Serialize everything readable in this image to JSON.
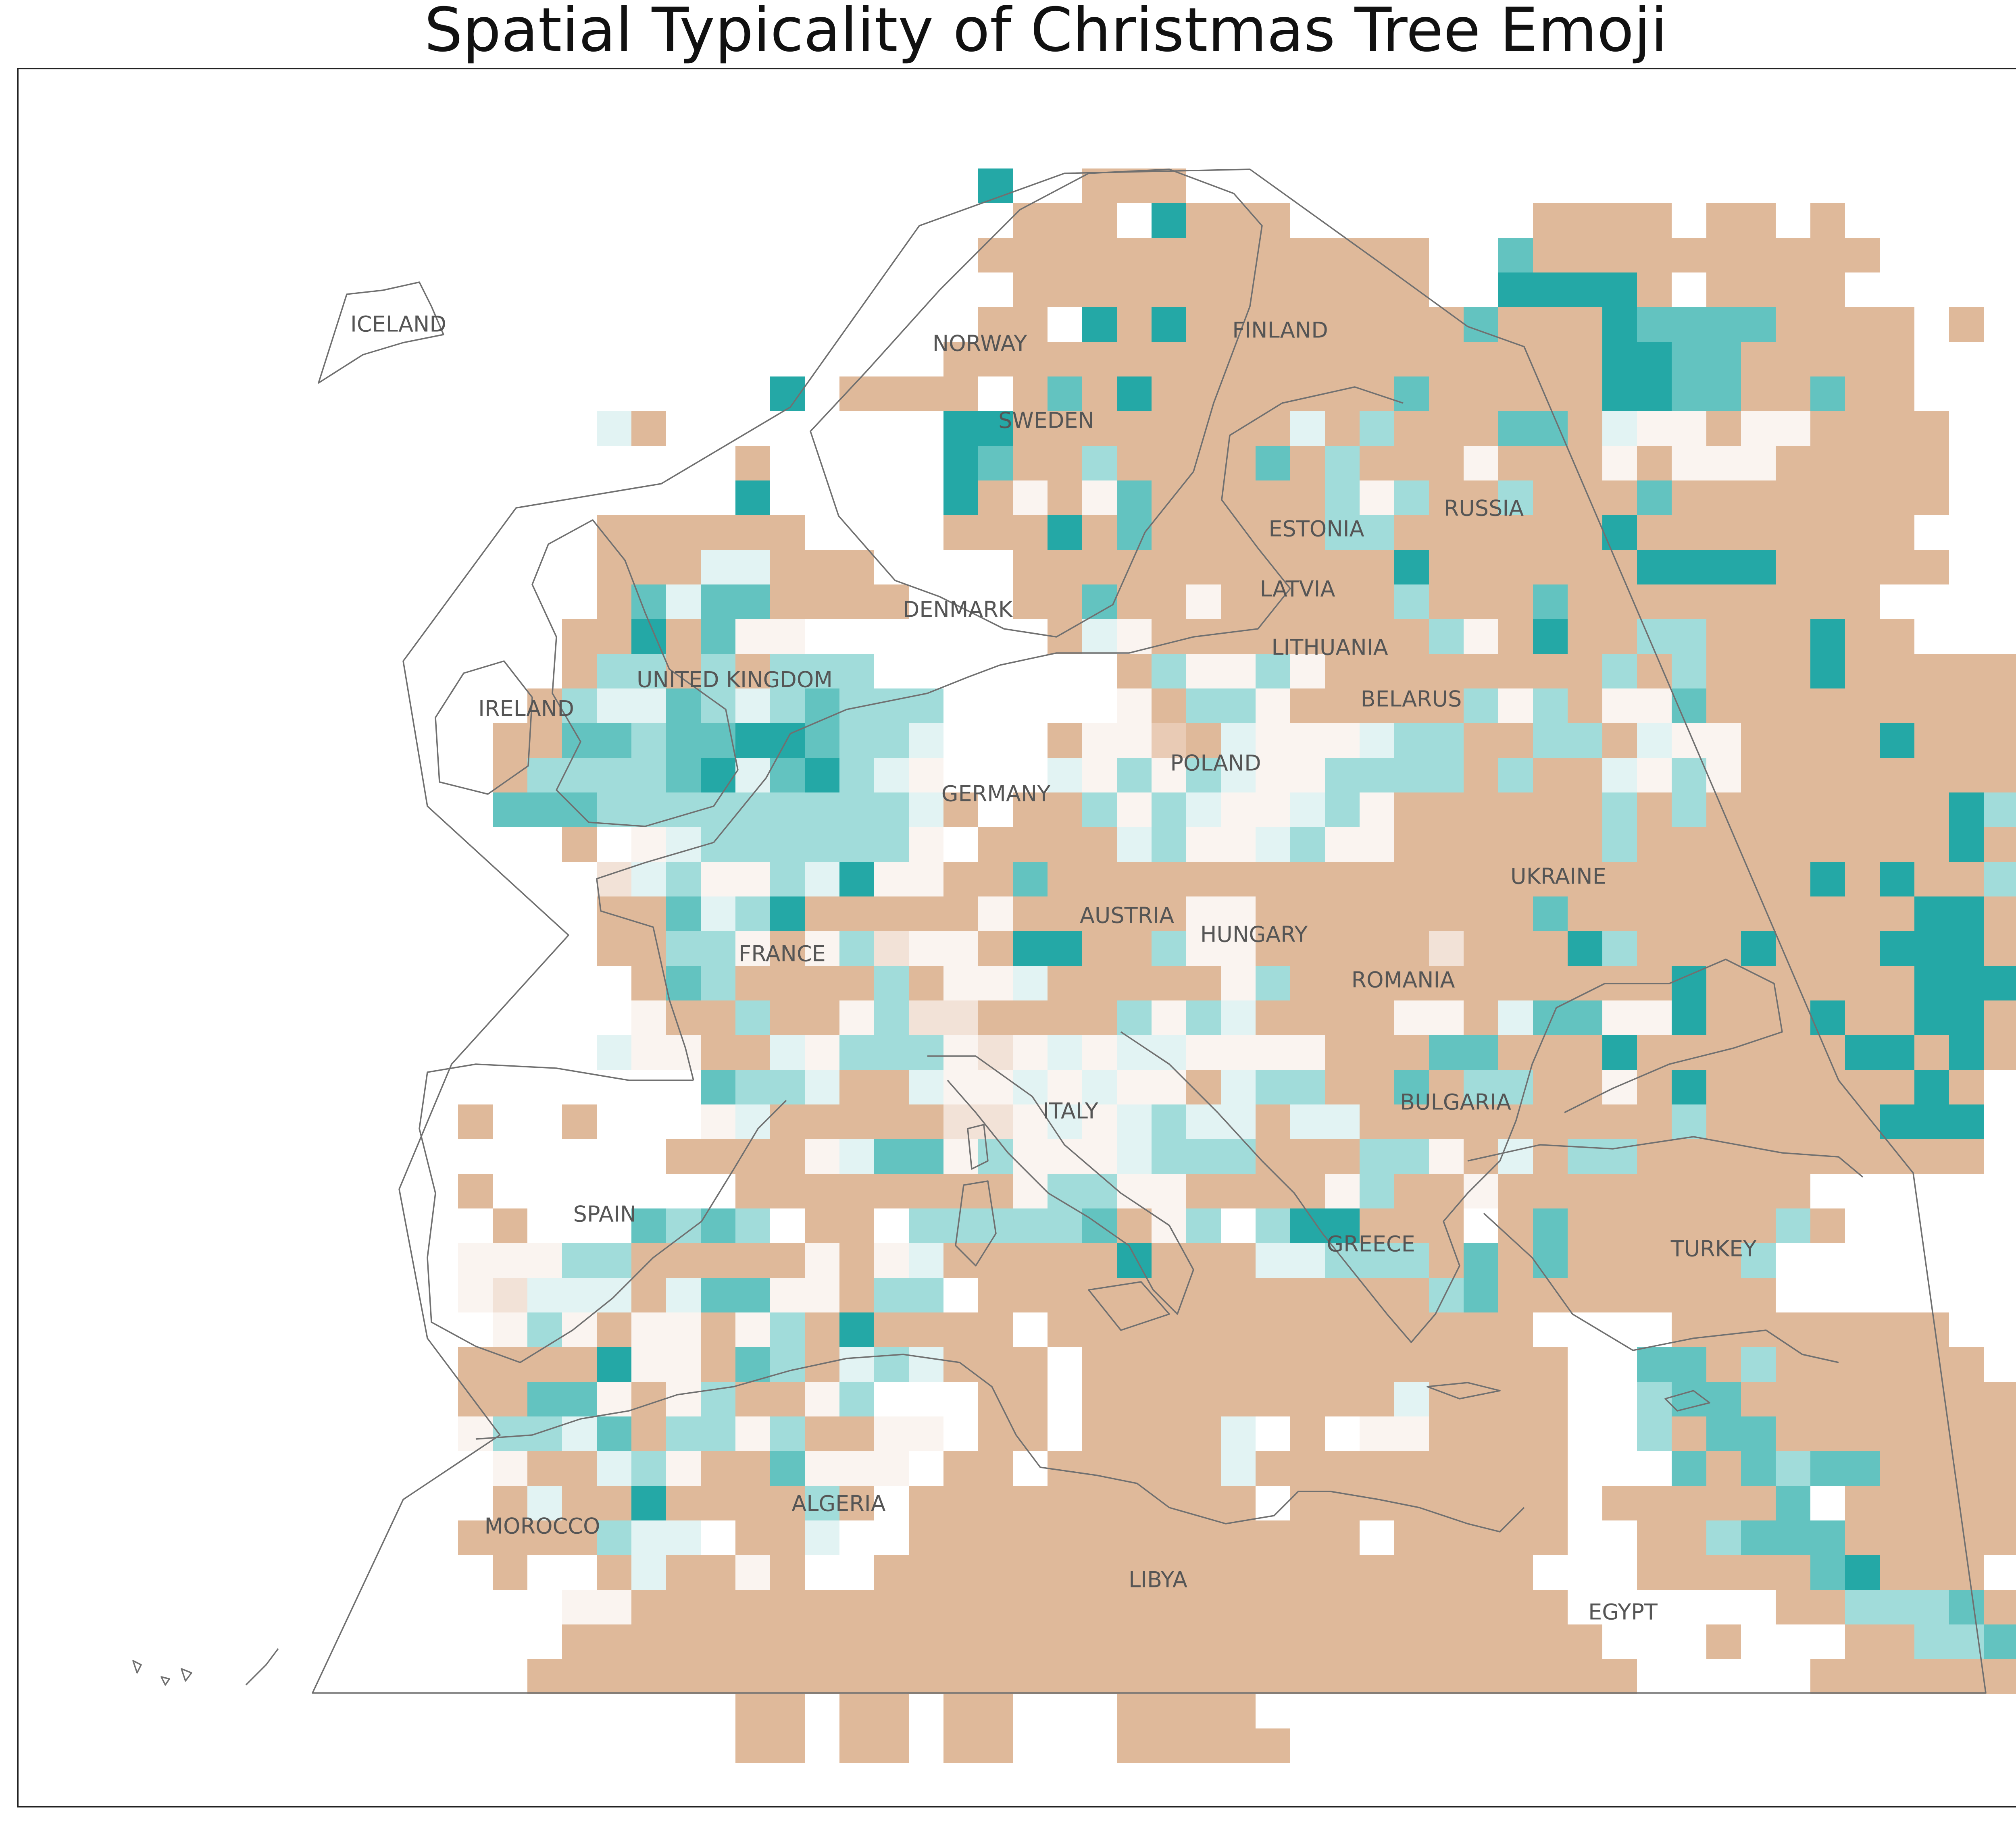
{
  "title": "Spatial Typicality of Christmas Tree Emoji",
  "colors": {
    "background": "#ffffff",
    "frame": "#222222",
    "coastline": "#707070",
    "label": "#555555",
    "scale": [
      "#dfb99a",
      "#e9cbb5",
      "#f2e2d7",
      "#faf4f0",
      "#e2f3f3",
      "#a1dcda",
      "#63c3c0",
      "#24a8a6"
    ]
  },
  "labels": [
    {
      "id": "iceland",
      "text": "ICELAND"
    },
    {
      "id": "norway",
      "text": "NORWAY"
    },
    {
      "id": "finland",
      "text": "FINLAND"
    },
    {
      "id": "sweden",
      "text": "SWEDEN"
    },
    {
      "id": "russia",
      "text": "RUSSIA"
    },
    {
      "id": "estonia",
      "text": "ESTONIA"
    },
    {
      "id": "latvia",
      "text": "LATVIA"
    },
    {
      "id": "denmark",
      "text": "DENMARK"
    },
    {
      "id": "lithuania",
      "text": "LITHUANIA"
    },
    {
      "id": "united-kingdom",
      "text": "UNITED KINGDOM"
    },
    {
      "id": "ireland",
      "text": "IRELAND"
    },
    {
      "id": "belarus",
      "text": "BELARUS"
    },
    {
      "id": "poland",
      "text": "POLAND"
    },
    {
      "id": "germany",
      "text": "GERMANY"
    },
    {
      "id": "ukraine",
      "text": "UKRAINE"
    },
    {
      "id": "austria",
      "text": "AUSTRIA"
    },
    {
      "id": "hungary",
      "text": "HUNGARY"
    },
    {
      "id": "france",
      "text": "FRANCE"
    },
    {
      "id": "romania",
      "text": "ROMANIA"
    },
    {
      "id": "italy",
      "text": "ITALY"
    },
    {
      "id": "bulgaria",
      "text": "BULGARIA"
    },
    {
      "id": "spain",
      "text": "SPAIN"
    },
    {
      "id": "greece",
      "text": "GREECE"
    },
    {
      "id": "turkey",
      "text": "TURKEY"
    },
    {
      "id": "algeria",
      "text": "ALGERIA"
    },
    {
      "id": "morocco",
      "text": "MOROCCO"
    },
    {
      "id": "libya",
      "text": "LIBYA"
    },
    {
      "id": "egypt",
      "text": "EGYPT"
    }
  ],
  "grid": {
    "note_levels": "0 = most atypical (tan) ... 7 = most typical (teal)",
    "rows": [
      "..........................7..000............................",
      "...........................000.7000.......0000.00.0.........",
      "..........................0000000000000..60000000000........",
      "...........................000000000000..77770.0000.........",
      "..........................00.707000000006000766660000.0.....",
      ".........................0000000000000000000776600000.......",
      "....................7.0000.06070000000600000776600600.......",
      "...............40........77000000004050006604330330000......",
      "...................0.....76005000060500030003033300000......",
      "...................7.....70303600000535005000600000000......",
      "...............000000....0007060000055000000700000000.......",
      "...............00044000....000000000007000000777700000......",
      "...............064660000...0060030000050006000000000........",
      "..............0070633.......0430000000053070055000700.......",
      "..............055050555.......05335300000000505000700000....",
      ".............054465456555.....305530000053503360000000000....",
      "............0066566776554...0331043334550055043300007000....",
      "............0555567467543...43535433555505004353000000000...",
      "............66655555555540.0053543345300000050500000007500..",
      "..............0.345555553.0000453345330000005000000000700...",
      "...............245335473300600000000000000000000007070050...",
      "...............0064570000030000033000000006000000000077000..",
      "...............0055303523307700533000002000750007000777000..",
      "................0650000503340000035000000000007000000777000..",
      "................30050035220000535400003304663370007007700.....",
      "...............433004355532343443333000660007000000770700.....",
      "..................6554004334343304550060550030700000070......",
      "...........0..0...3400000223434544044000000000500000777......",
      ".................00003466353334555000553040550000000000.....",
      "...........0.......0000000035533000035003000000000.......",
      "............0...6565.00.555556035.577000.0600000050.......",
      "...........33355000003034000007000445550606000005.......",
      "...........32444046633055.00000000000005600000000........",
      "............353033035070000.00000000000000....00000000.......",
      "...........00007330650454000.00000000000000..6605000000........",
      "...........006630350035...00.00000000040000..566000000000......",
      "...........35546055350033.00.00004.0.330000..5066000000000......",
      "............300453006333.00.000004000000000...606566000000.......",
      "............04007000050.0000000000.00000000.000006.00000000.......",
      "...........0000544.004..0000000000000.00000..00566600000000......",
      "............0..040030..0000000000000000000...0000067000..........",
      "..............33000000000000000000000000000......00555600........",
      "..............000000000000000000000000000000...0...005560........",
      ".............00000000000000000000000000000000.....00000000.0.......",
      "...................00.00.00...0000.........................",
      "...................00.00.00...00000........................"
    ]
  }
}
